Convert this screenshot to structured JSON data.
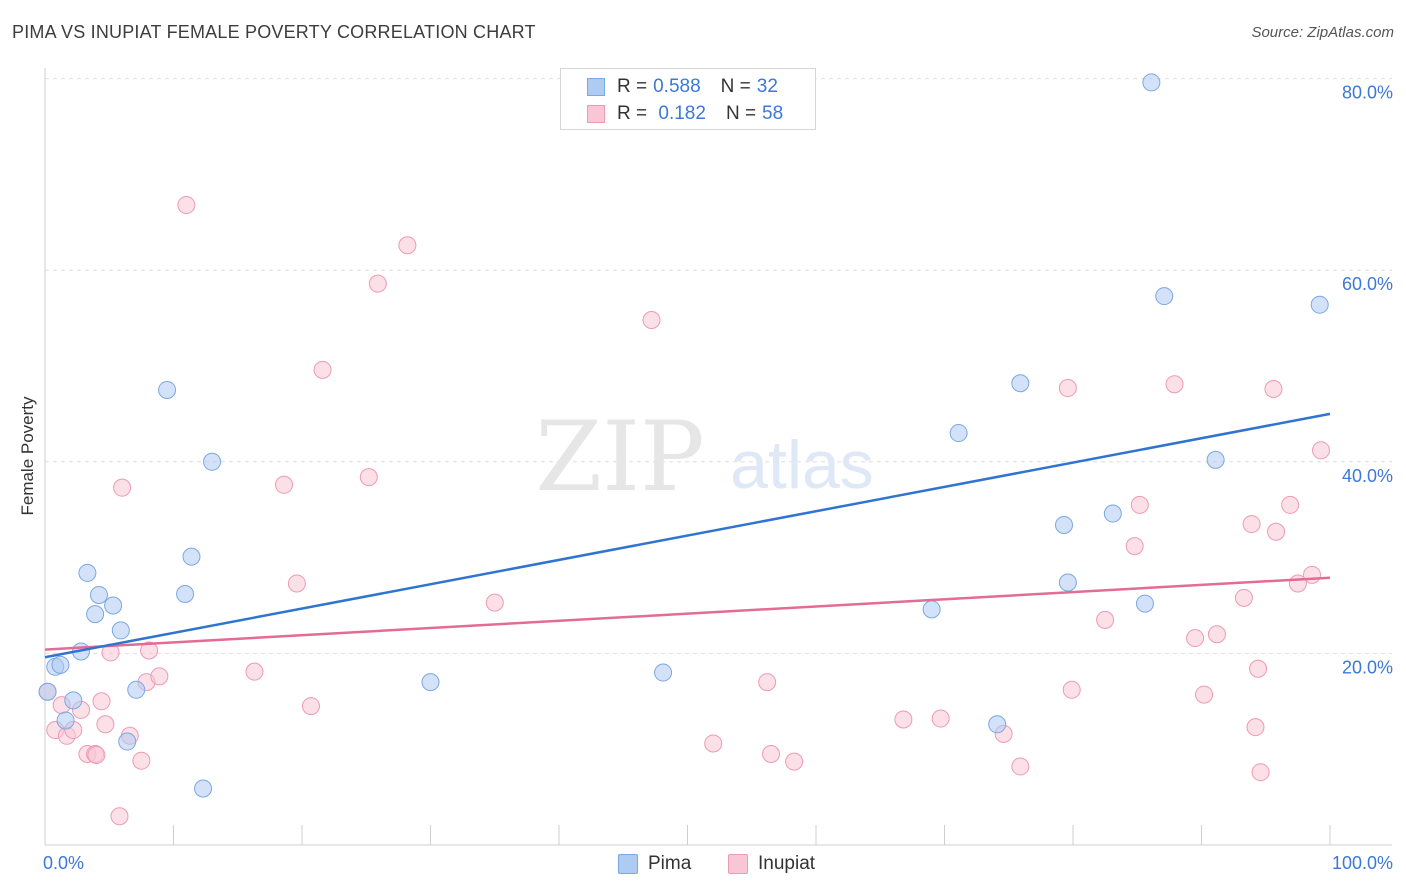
{
  "title": "PIMA VS INUPIAT FEMALE POVERTY CORRELATION CHART",
  "source": "Source: ZipAtlas.com",
  "watermark": {
    "zip": "ZIP",
    "atlas": "atlas"
  },
  "legend": {
    "rows": [
      {
        "r_label": "R = ",
        "r_value": "0.588",
        "n_label": "N = ",
        "n_value": "32"
      },
      {
        "r_label": "R = ",
        "r_value": " 0.182",
        "n_label": "N = ",
        "n_value": "58"
      }
    ]
  },
  "bottom_legend": [
    "Pima",
    "Inupiat"
  ],
  "colors": {
    "pima_fill": "#aecbf2",
    "pima_stroke": "#7aa8e4",
    "pima_line": "#2f74d0",
    "inupiat_fill": "#f9c6d5",
    "inupiat_stroke": "#ee9ab3",
    "inupiat_line": "#e36b95",
    "tick_label": "#3c78d8",
    "grid": "#dedede"
  },
  "chart_data": {
    "type": "scatter",
    "title": "PIMA VS INUPIAT FEMALE POVERTY CORRELATION CHART",
    "xlabel": "",
    "ylabel": "Female Poverty",
    "xlim": [
      0,
      100
    ],
    "ylim": [
      0,
      82
    ],
    "x_tick_labels": [
      "0.0%",
      "100.0%"
    ],
    "y_ticks": [
      20,
      40,
      60,
      80
    ],
    "y_tick_labels": [
      "20.0%",
      "40.0%",
      "60.0%",
      "80.0%"
    ],
    "grid": true,
    "legend_position": "top-center",
    "series": [
      {
        "name": "Pima",
        "r": 0.588,
        "n": 32,
        "trend": {
          "x": [
            0,
            100
          ],
          "y": [
            19.6,
            45.0
          ]
        },
        "points": [
          [
            0.2,
            16.0
          ],
          [
            0.8,
            18.6
          ],
          [
            1.2,
            18.8
          ],
          [
            1.6,
            13.0
          ],
          [
            2.2,
            15.1
          ],
          [
            2.8,
            20.2
          ],
          [
            3.3,
            28.4
          ],
          [
            3.9,
            24.1
          ],
          [
            4.2,
            26.1
          ],
          [
            5.3,
            25.0
          ],
          [
            5.9,
            22.4
          ],
          [
            6.4,
            10.8
          ],
          [
            7.1,
            16.2
          ],
          [
            9.5,
            47.5
          ],
          [
            10.9,
            26.2
          ],
          [
            11.4,
            30.1
          ],
          [
            12.3,
            5.9
          ],
          [
            13.0,
            40.0
          ],
          [
            30.0,
            17.0
          ],
          [
            48.1,
            18.0
          ],
          [
            69.0,
            24.6
          ],
          [
            71.1,
            43.0
          ],
          [
            74.1,
            12.6
          ],
          [
            75.9,
            48.2
          ],
          [
            79.3,
            33.4
          ],
          [
            79.6,
            27.4
          ],
          [
            83.1,
            34.6
          ],
          [
            85.6,
            25.2
          ],
          [
            86.1,
            79.6
          ],
          [
            87.1,
            57.3
          ],
          [
            91.1,
            40.2
          ],
          [
            99.2,
            56.4
          ]
        ]
      },
      {
        "name": "Inupiat",
        "r": 0.182,
        "n": 58,
        "trend": {
          "x": [
            0,
            100
          ],
          "y": [
            20.4,
            27.9
          ]
        },
        "points": [
          [
            0.2,
            16.0
          ],
          [
            0.8,
            12.0
          ],
          [
            1.3,
            14.6
          ],
          [
            1.7,
            11.4
          ],
          [
            2.2,
            12.0
          ],
          [
            2.8,
            14.1
          ],
          [
            3.3,
            9.5
          ],
          [
            3.9,
            9.5
          ],
          [
            4.4,
            15.0
          ],
          [
            4.7,
            12.6
          ],
          [
            5.1,
            20.1
          ],
          [
            6.0,
            37.3
          ],
          [
            5.8,
            3.0
          ],
          [
            6.6,
            11.4
          ],
          [
            7.5,
            8.8
          ],
          [
            7.9,
            17.0
          ],
          [
            8.1,
            20.3
          ],
          [
            8.9,
            17.6
          ],
          [
            11.0,
            66.8
          ],
          [
            16.3,
            18.1
          ],
          [
            18.6,
            37.6
          ],
          [
            19.6,
            27.3
          ],
          [
            20.7,
            14.5
          ],
          [
            21.6,
            49.6
          ],
          [
            25.2,
            38.4
          ],
          [
            25.9,
            58.6
          ],
          [
            28.2,
            62.6
          ],
          [
            35.0,
            25.3
          ],
          [
            47.2,
            54.8
          ],
          [
            52.0,
            10.6
          ],
          [
            56.2,
            17.0
          ],
          [
            56.5,
            9.5
          ],
          [
            58.3,
            8.7
          ],
          [
            66.8,
            13.1
          ],
          [
            69.7,
            13.2
          ],
          [
            74.6,
            11.6
          ],
          [
            75.9,
            8.2
          ],
          [
            79.6,
            47.7
          ],
          [
            79.9,
            16.2
          ],
          [
            82.5,
            23.5
          ],
          [
            84.8,
            31.2
          ],
          [
            85.2,
            35.5
          ],
          [
            87.9,
            48.1
          ],
          [
            89.5,
            21.6
          ],
          [
            90.2,
            15.7
          ],
          [
            91.2,
            22.0
          ],
          [
            93.3,
            25.8
          ],
          [
            93.9,
            33.5
          ],
          [
            94.2,
            12.3
          ],
          [
            94.4,
            18.4
          ],
          [
            94.6,
            7.6
          ],
          [
            95.6,
            47.6
          ],
          [
            95.8,
            32.7
          ],
          [
            96.9,
            35.5
          ],
          [
            97.5,
            27.3
          ],
          [
            98.6,
            28.2
          ],
          [
            99.3,
            41.2
          ],
          [
            4.0,
            9.4
          ]
        ]
      }
    ]
  }
}
